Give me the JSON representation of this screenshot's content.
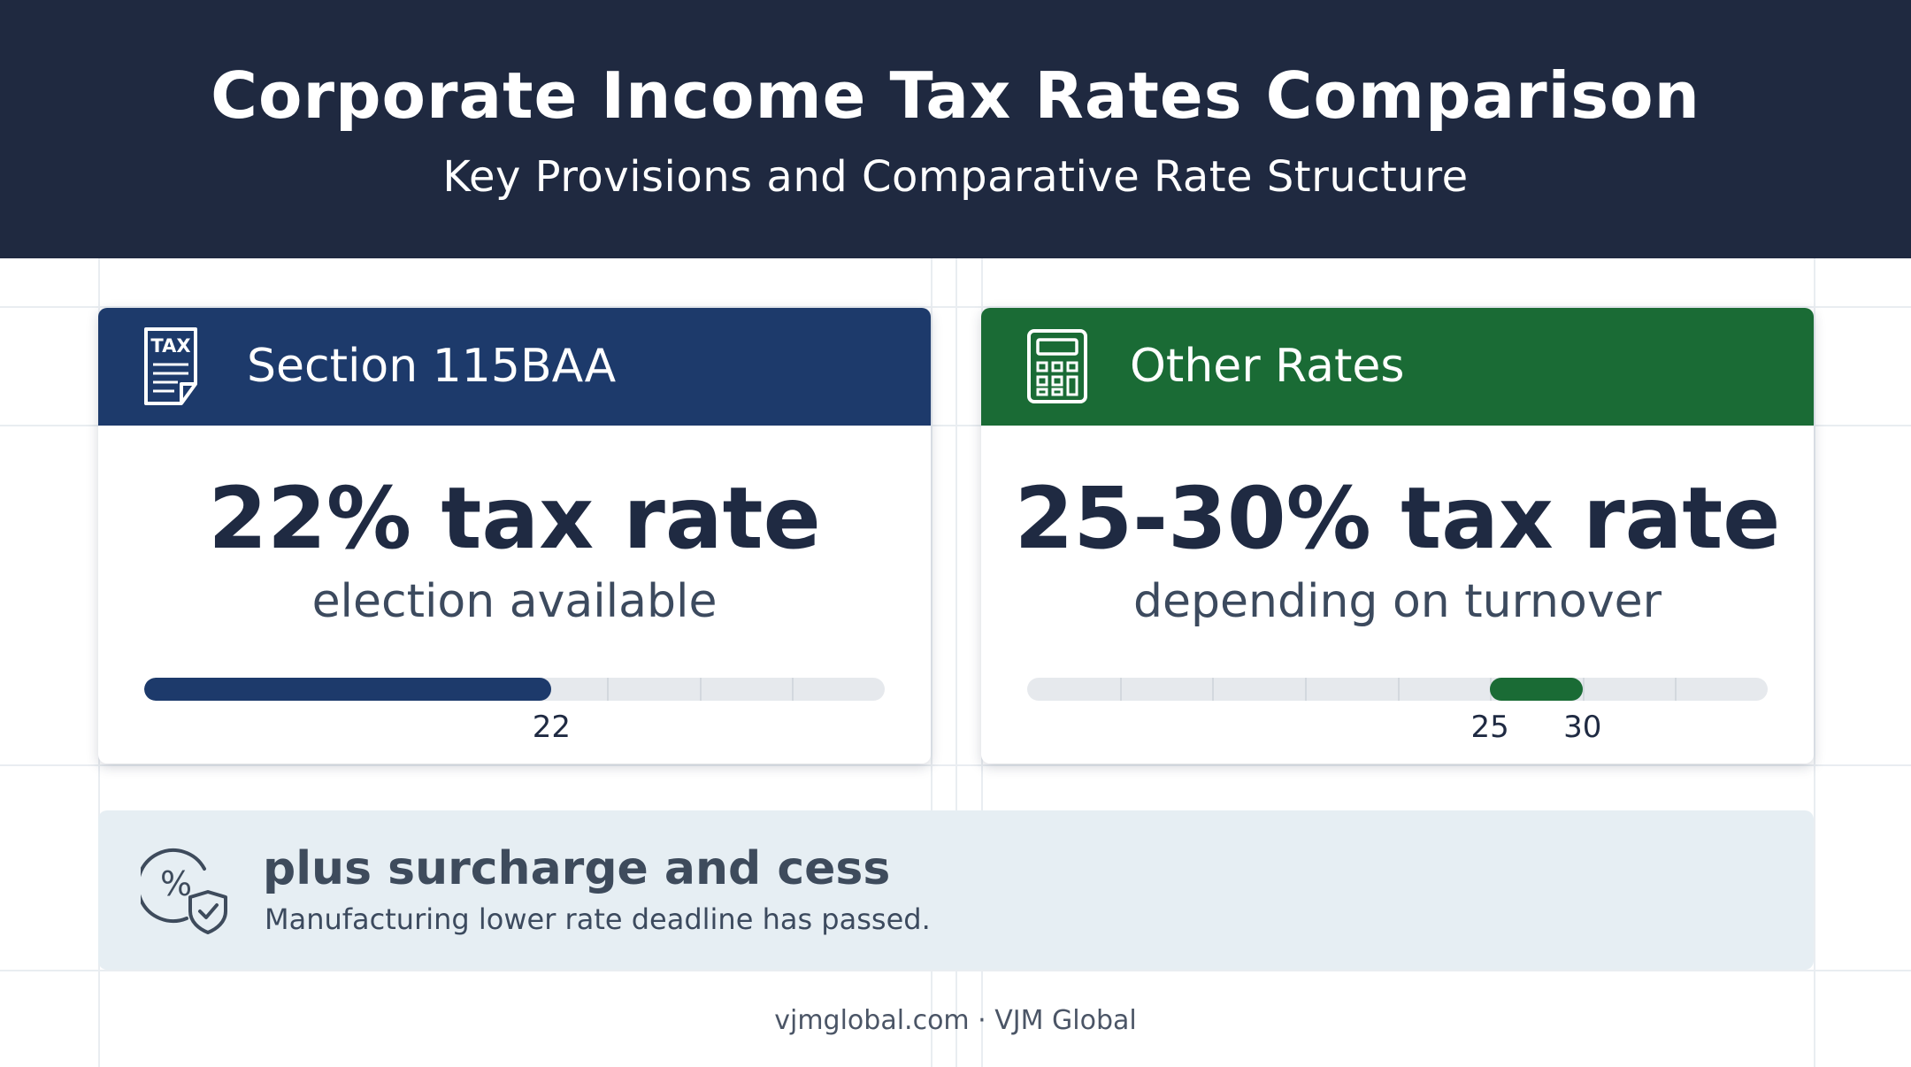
{
  "header": {
    "title": "Corporate Income Tax Rates Comparison",
    "subtitle": "Key Provisions and Comparative Rate Structure",
    "background": "#1f2940"
  },
  "cards": [
    {
      "title": "Section 115BAA",
      "icon": "tax-document-icon",
      "icon_label": "TAX",
      "accent": "#1d3a6b",
      "rate_text": "22% tax rate",
      "note": "election available",
      "bar": {
        "from": 0,
        "to": 22,
        "labels": [
          "22"
        ]
      }
    },
    {
      "title": "Other Rates",
      "icon": "calculator-icon",
      "accent": "#1a6b35",
      "rate_text": "25-30% tax rate",
      "note": "depending on turnover",
      "bar": {
        "from": 25,
        "to": 30,
        "labels": [
          "25",
          "30"
        ]
      }
    }
  ],
  "note": {
    "icon": "percent-shield-icon",
    "title": "plus surcharge and cess",
    "text": "Manufacturing lower rate deadline has passed."
  },
  "footer": {
    "text": "vjmglobal.com · VJM Global"
  }
}
